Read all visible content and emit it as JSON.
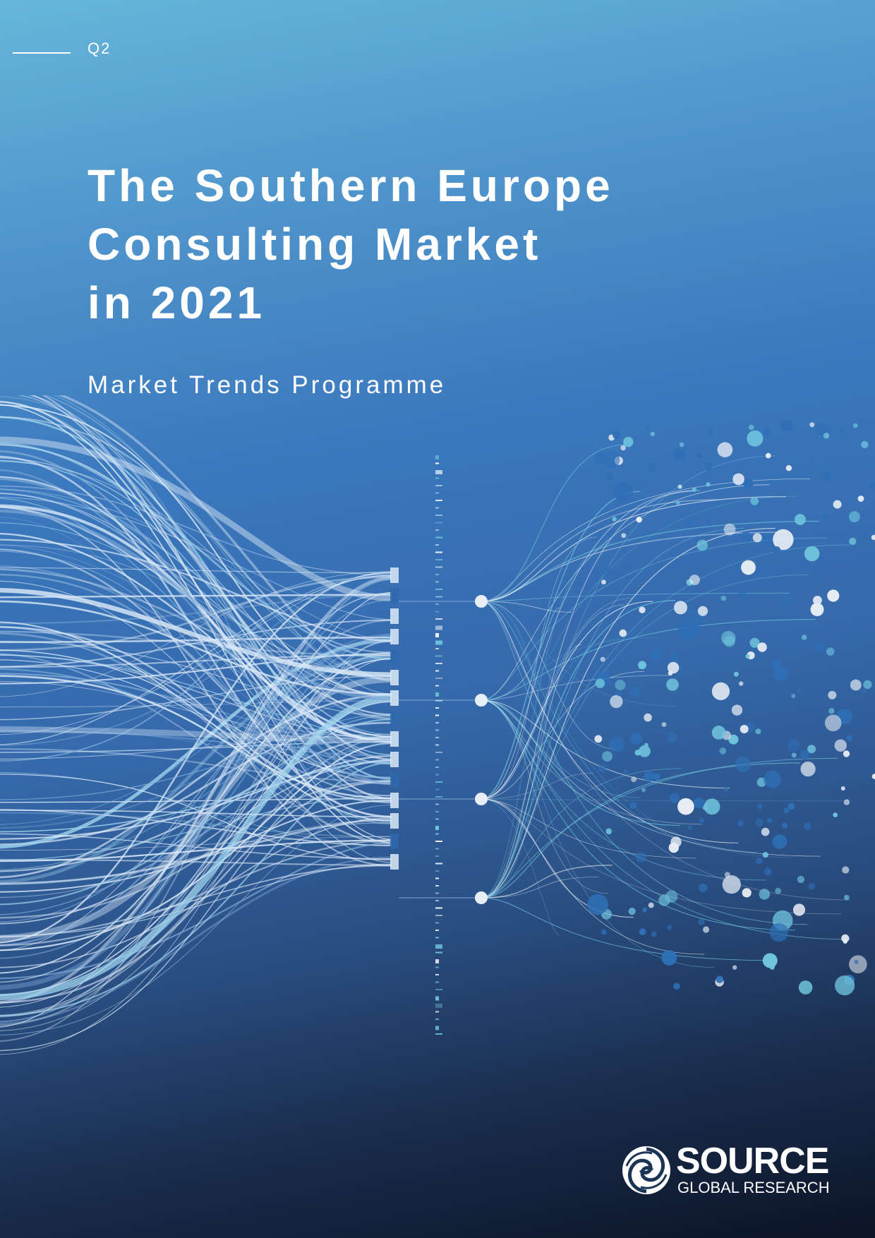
{
  "cover": {
    "quarter": "Q2",
    "title_lines": [
      "The Southern Europe",
      "Consulting Market",
      "in 2021"
    ],
    "subtitle": "Market Trends Programme"
  },
  "logo": {
    "wordmark": "SOURCE",
    "tagline": "GLOBAL RESEARCH",
    "icon": "swirl-logo-icon"
  },
  "colors": {
    "gradient_top": "#66b6d9",
    "gradient_mid": "#3569ab",
    "gradient_bottom": "#0c1426",
    "stream_light": "#dbe9f7",
    "stream_cyan": "#9fd3ec",
    "dot_white": "#e8eef5",
    "dot_cyan": "#6fc3dc",
    "dot_blue": "#2f6fb6",
    "text": "#ffffff"
  }
}
